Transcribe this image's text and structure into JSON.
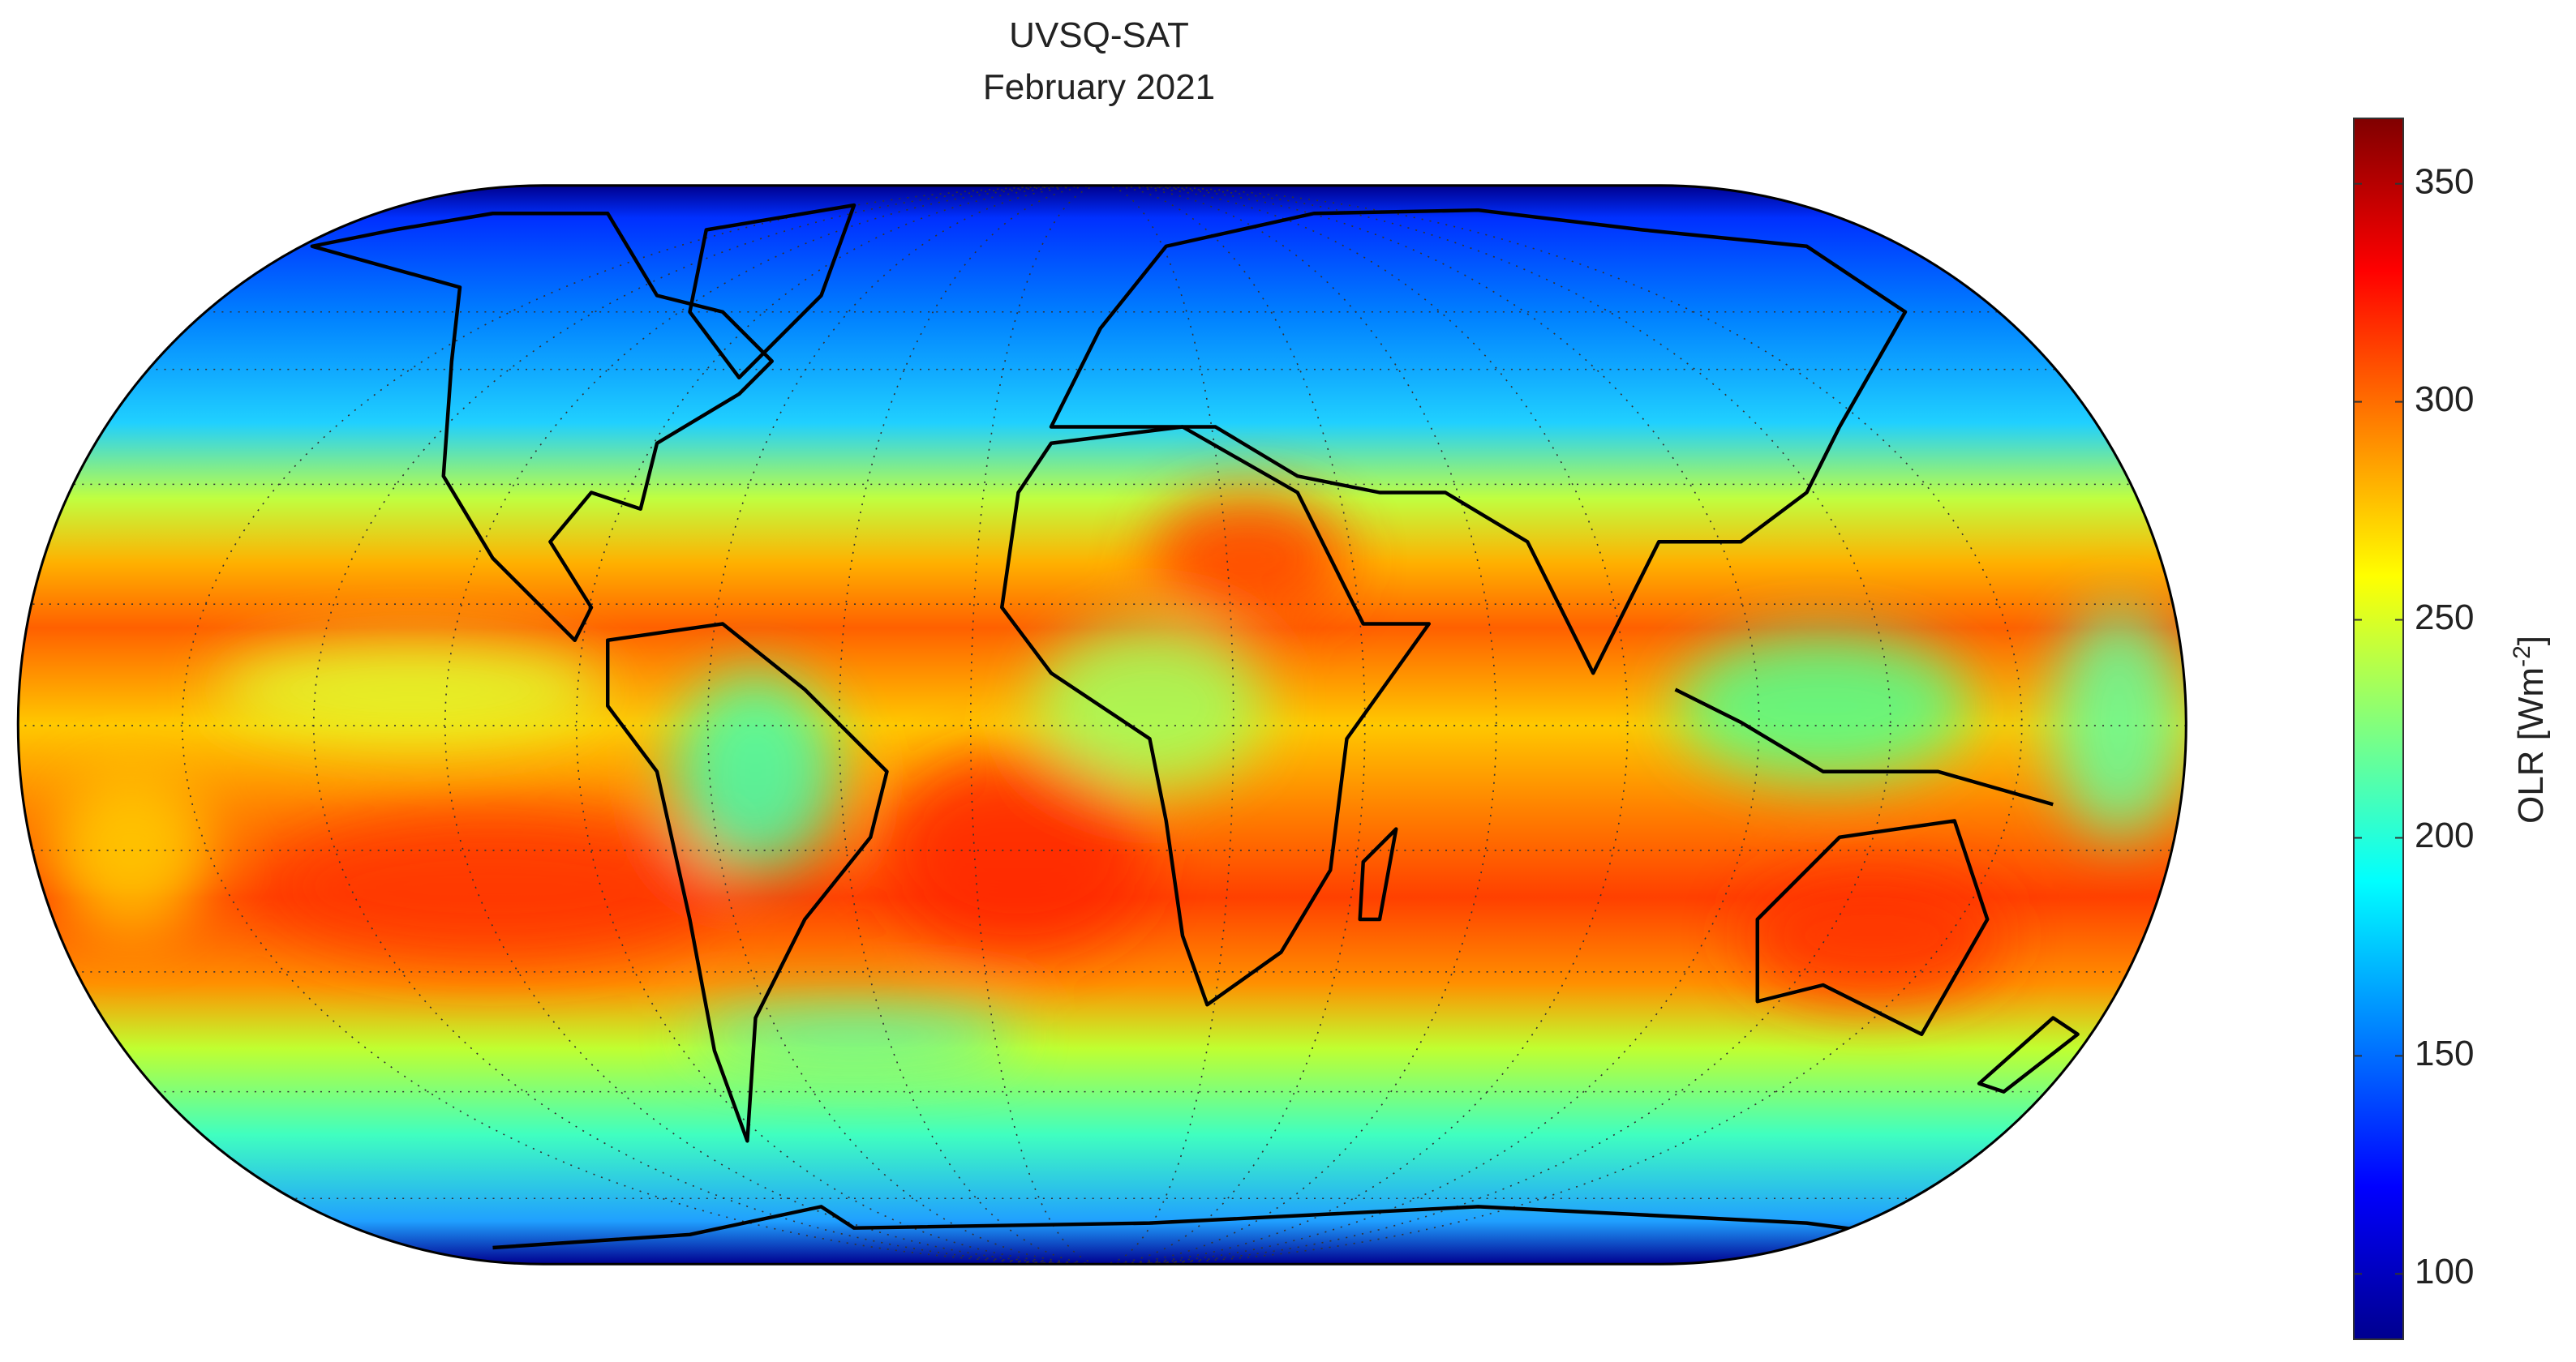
{
  "title": [
    "UVSQ-SAT",
    "February 2021"
  ],
  "colorbar": {
    "label": "OLR [Wm",
    "label_superscript": "-2",
    "label_suffix": "]",
    "clim": [
      85,
      365
    ],
    "ticks": [
      100,
      150,
      200,
      250,
      300,
      350
    ],
    "colormap": "jet"
  }
}
